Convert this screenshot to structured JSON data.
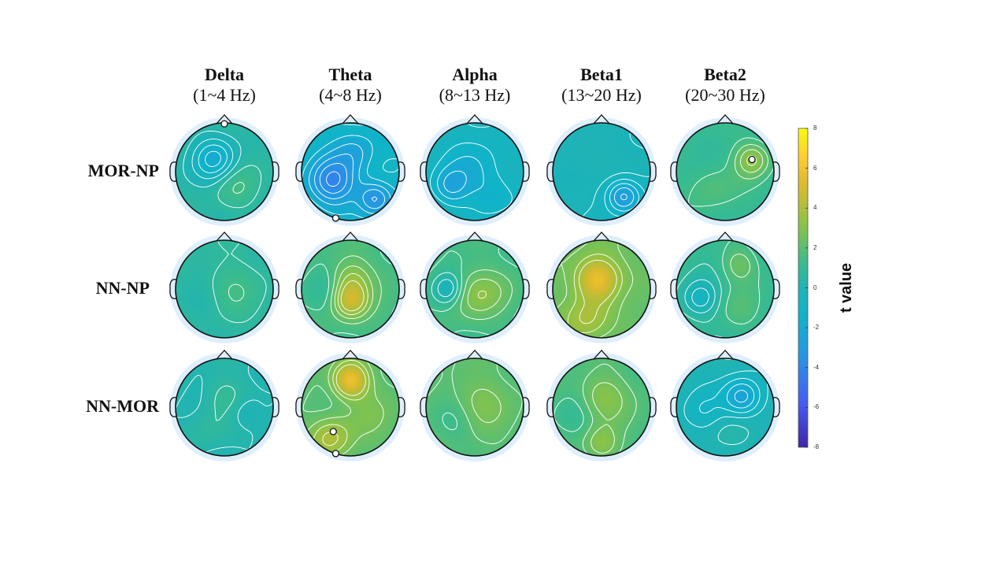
{
  "bands": [
    {
      "name": "Delta",
      "range": "(1~4 Hz)"
    },
    {
      "name": "Theta",
      "range": "(4~8 Hz)"
    },
    {
      "name": "Alpha",
      "range": "(8~13 Hz)"
    },
    {
      "name": "Beta1",
      "range": "(13~20 Hz)"
    },
    {
      "name": "Beta2",
      "range": "(20~30 Hz)"
    }
  ],
  "rows": [
    {
      "label": "MOR-NP"
    },
    {
      "label": "NN-NP"
    },
    {
      "label": "NN-MOR"
    }
  ],
  "colorbar": {
    "label": "t value",
    "ticks": [
      "8",
      "6",
      "4",
      "2",
      "0",
      "-2",
      "-4",
      "-6",
      "-8"
    ],
    "range": [
      -8,
      8
    ],
    "colormap": "parula"
  },
  "colors": {
    "low": "#3e26a8",
    "mid": "#1fb3b5",
    "high": "#f9fb0e",
    "contour": "#ffffff",
    "outline": "#111111"
  },
  "maps": [
    [
      {
        "base": 0.5,
        "blobs": [
          [
            -0.2,
            -0.25,
            -2.2,
            0.3
          ],
          [
            0.2,
            0.3,
            0.8,
            0.3
          ]
        ],
        "markers": [
          [
            0.0,
            -0.98
          ]
        ]
      },
      {
        "base": -1.0,
        "blobs": [
          [
            -0.35,
            0.2,
            -3.0,
            0.35
          ],
          [
            0.1,
            -0.4,
            -1.2,
            0.3
          ],
          [
            0.5,
            0.55,
            -2.5,
            0.25
          ]
        ],
        "markers": [
          [
            -0.3,
            0.95
          ]
        ]
      },
      {
        "base": -0.5,
        "blobs": [
          [
            0.0,
            0.0,
            -1.2,
            0.4
          ],
          [
            -0.5,
            0.3,
            -1.5,
            0.25
          ],
          [
            0.4,
            0.5,
            -0.8,
            0.3
          ]
        ],
        "markers": []
      },
      {
        "base": -0.3,
        "blobs": [
          [
            0.45,
            0.5,
            -2.8,
            0.25
          ],
          [
            -0.3,
            -0.3,
            0.6,
            0.35
          ]
        ],
        "markers": []
      },
      {
        "base": 1.0,
        "blobs": [
          [
            0.55,
            -0.25,
            2.2,
            0.25
          ],
          [
            -0.3,
            0.3,
            0.8,
            0.35
          ]
        ],
        "markers": [
          [
            0.55,
            -0.25
          ]
        ]
      }
    ],
    [
      {
        "base": 0.6,
        "blobs": [
          [
            0.0,
            0.0,
            0.8,
            0.4
          ],
          [
            -0.4,
            0.3,
            -0.5,
            0.3
          ]
        ],
        "markers": []
      },
      {
        "base": 1.5,
        "blobs": [
          [
            0.0,
            0.25,
            2.8,
            0.25
          ],
          [
            0.0,
            -0.2,
            1.8,
            0.3
          ],
          [
            -0.5,
            0.0,
            -0.6,
            0.3
          ]
        ],
        "markers": []
      },
      {
        "base": 1.4,
        "blobs": [
          [
            0.0,
            0.1,
            1.6,
            0.35
          ],
          [
            -0.55,
            0.0,
            -1.8,
            0.22
          ],
          [
            0.5,
            0.0,
            0.4,
            0.3
          ]
        ],
        "markers": []
      },
      {
        "base": 2.4,
        "blobs": [
          [
            -0.1,
            -0.2,
            3.5,
            0.3
          ],
          [
            -0.3,
            0.6,
            1.5,
            0.3
          ],
          [
            0.5,
            0.2,
            -0.4,
            0.3
          ]
        ],
        "markers": []
      },
      {
        "base": 1.0,
        "blobs": [
          [
            0.3,
            -0.5,
            1.4,
            0.25
          ],
          [
            -0.5,
            0.2,
            -1.6,
            0.25
          ],
          [
            0.3,
            0.4,
            0.6,
            0.3
          ]
        ],
        "markers": []
      }
    ],
    [
      {
        "base": 0.2,
        "blobs": [
          [
            0.0,
            -0.2,
            1.0,
            0.3
          ],
          [
            0.4,
            0.1,
            -0.8,
            0.25
          ],
          [
            -0.3,
            0.4,
            0.5,
            0.3
          ]
        ],
        "markers": []
      },
      {
        "base": 2.0,
        "blobs": [
          [
            0.0,
            -0.55,
            3.8,
            0.25
          ],
          [
            -0.4,
            0.65,
            2.0,
            0.3
          ],
          [
            0.4,
            0.2,
            0.5,
            0.35
          ]
        ],
        "markers": [
          [
            -0.35,
            0.5
          ],
          [
            -0.3,
            0.95
          ]
        ]
      },
      {
        "base": 1.9,
        "blobs": [
          [
            0.0,
            -0.1,
            1.0,
            0.4
          ],
          [
            -0.4,
            0.3,
            -0.8,
            0.3
          ]
        ],
        "markers": []
      },
      {
        "base": 1.6,
        "blobs": [
          [
            0.0,
            -0.2,
            1.6,
            0.35
          ],
          [
            0.0,
            0.75,
            1.6,
            0.25
          ],
          [
            -0.5,
            0.2,
            -0.6,
            0.3
          ]
        ],
        "markers": []
      },
      {
        "base": 0.0,
        "blobs": [
          [
            0.35,
            -0.2,
            -2.6,
            0.28
          ],
          [
            -0.4,
            0.1,
            -0.8,
            0.3
          ],
          [
            0.0,
            0.5,
            0.4,
            0.3
          ]
        ],
        "markers": []
      }
    ]
  ]
}
